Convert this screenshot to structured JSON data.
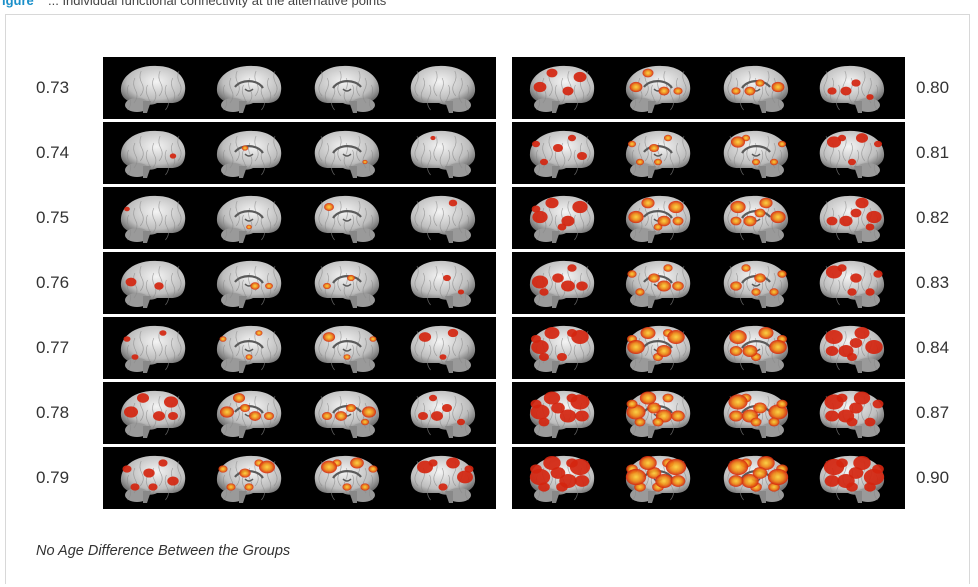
{
  "caption": {
    "label": "igure",
    "text": "... Individual functional connectivity at the alternative points"
  },
  "left_thresholds": [
    "0.73",
    "0.74",
    "0.75",
    "0.76",
    "0.77",
    "0.78",
    "0.79"
  ],
  "right_thresholds": [
    "0.80",
    "0.81",
    "0.82",
    "0.83",
    "0.84",
    "0.87",
    "0.90"
  ],
  "left_activation_levels": [
    0,
    0.05,
    0.12,
    0.2,
    0.3,
    0.45,
    0.6
  ],
  "right_activation_levels": [
    0.35,
    0.45,
    0.55,
    0.62,
    0.72,
    0.85,
    0.95
  ],
  "footnote": "No Age Difference Between the Groups",
  "colors": {
    "panel_bg": "#000000",
    "brain_base": "#cfcfcf",
    "activation_red": "#d4250f",
    "activation_yellow": "#ffd23a"
  },
  "icons": [
    "brain-render-lateral-left",
    "brain-render-medial-left",
    "brain-render-medial-right",
    "brain-render-lateral-right"
  ]
}
